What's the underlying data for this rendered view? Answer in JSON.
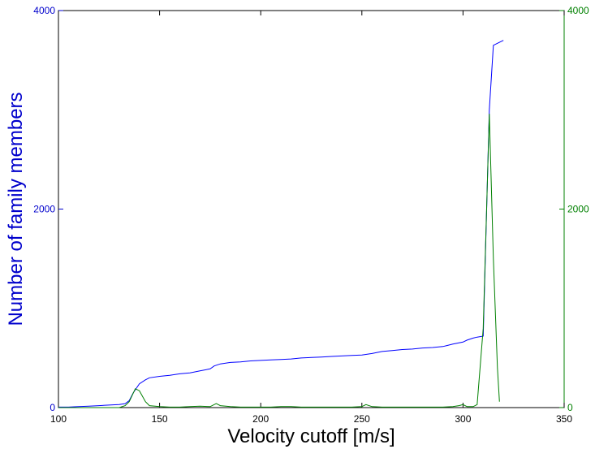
{
  "chart_data": {
    "type": "line",
    "xlabel": "Velocity cutoff [m/s]",
    "ylabel": "Number of family members",
    "y2label": "",
    "xlim": [
      100,
      350
    ],
    "ylim": [
      0,
      4000
    ],
    "y2lim": [
      0,
      4000
    ],
    "xticks": [
      "100",
      "150",
      "200",
      "250",
      "300",
      "350"
    ],
    "xtick_values": [
      100,
      150,
      200,
      250,
      300,
      350
    ],
    "yticks": [
      "0",
      "2000",
      "4000"
    ],
    "ytick_values": [
      0,
      2000,
      4000
    ],
    "y2ticks": [
      "0",
      "2000",
      "4000"
    ],
    "y2tick_values": [
      0,
      2000,
      4000
    ],
    "grid": false,
    "colors": {
      "left_axis": "#0000cc",
      "right_axis": "#008000",
      "frame": "#000000"
    },
    "series": [
      {
        "axis": "left",
        "color": "#0000ff",
        "x": [
          100,
          105,
          110,
          115,
          120,
          125,
          130,
          133,
          135,
          137,
          140,
          143,
          145,
          150,
          155,
          160,
          165,
          170,
          175,
          177,
          180,
          185,
          190,
          195,
          200,
          205,
          210,
          215,
          220,
          225,
          230,
          235,
          240,
          245,
          250,
          255,
          260,
          265,
          270,
          275,
          280,
          285,
          290,
          292,
          295,
          300,
          302,
          305,
          307,
          310,
          313,
          315,
          317,
          320
        ],
        "y": [
          5,
          5,
          10,
          15,
          20,
          25,
          30,
          40,
          70,
          150,
          240,
          280,
          300,
          315,
          325,
          340,
          350,
          370,
          390,
          420,
          440,
          455,
          460,
          470,
          475,
          480,
          485,
          490,
          500,
          505,
          510,
          515,
          520,
          525,
          530,
          545,
          565,
          575,
          585,
          590,
          600,
          605,
          615,
          625,
          640,
          660,
          680,
          700,
          710,
          720,
          3000,
          3650,
          3670,
          3700
        ]
      },
      {
        "axis": "right",
        "color": "#008000",
        "x": [
          100,
          105,
          110,
          115,
          120,
          125,
          130,
          133,
          135,
          138,
          140,
          143,
          145,
          150,
          155,
          160,
          165,
          170,
          175,
          178,
          180,
          185,
          190,
          195,
          200,
          205,
          210,
          215,
          220,
          225,
          230,
          235,
          240,
          245,
          250,
          252,
          255,
          260,
          265,
          270,
          275,
          280,
          285,
          290,
          295,
          298,
          300,
          302,
          305,
          307,
          310,
          313,
          315,
          317,
          318
        ],
        "y": [
          0,
          0,
          0,
          0,
          0,
          0,
          0,
          20,
          60,
          190,
          170,
          60,
          20,
          10,
          5,
          5,
          10,
          15,
          10,
          40,
          20,
          10,
          5,
          5,
          5,
          5,
          10,
          10,
          5,
          5,
          5,
          5,
          5,
          5,
          10,
          30,
          10,
          5,
          5,
          5,
          5,
          5,
          5,
          5,
          10,
          20,
          30,
          10,
          10,
          30,
          800,
          2960,
          1500,
          400,
          60
        ]
      }
    ]
  }
}
